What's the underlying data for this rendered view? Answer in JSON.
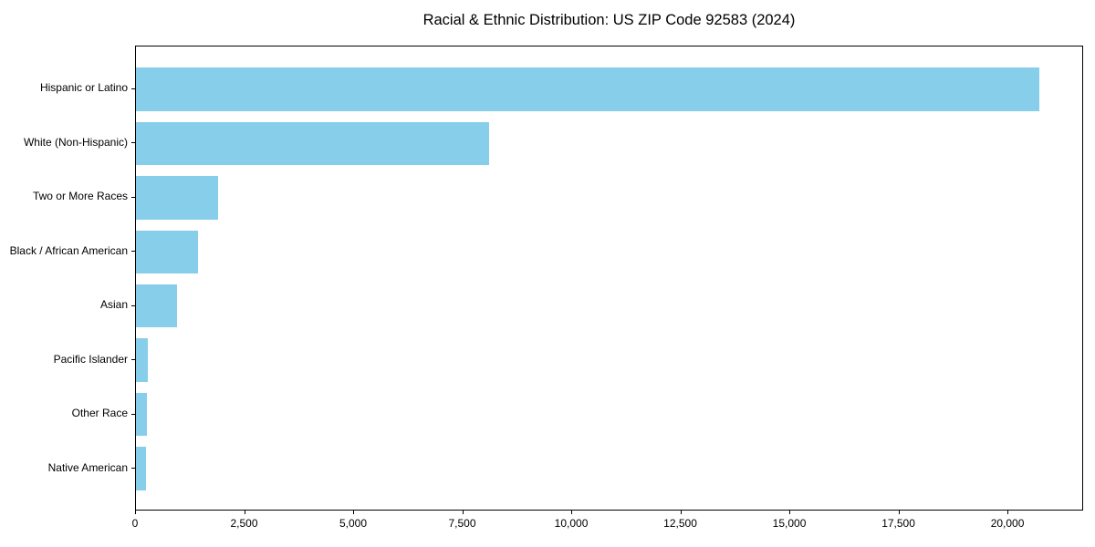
{
  "page": {
    "background_color": "#ffffff",
    "text_color": "#000000"
  },
  "chart_data": {
    "type": "bar",
    "orientation": "horizontal",
    "title": "Racial & Ethnic Distribution: US ZIP Code 92583 (2024)",
    "categories": [
      "Hispanic or Latino",
      "White (Non-Hispanic)",
      "Two or More Races",
      "Black / African American",
      "Asian",
      "Pacific Islander",
      "Other Race",
      "Native American"
    ],
    "values": [
      20700,
      8100,
      1880,
      1420,
      940,
      280,
      250,
      230
    ],
    "xlabel": "",
    "ylabel": "",
    "xlim": [
      0,
      21735
    ],
    "xticks": [
      0,
      2500,
      5000,
      7500,
      10000,
      12500,
      15000,
      17500,
      20000
    ],
    "xtick_labels": [
      "0",
      "2,500",
      "5,000",
      "7,500",
      "10,000",
      "12,500",
      "15,000",
      "17,500",
      "20,000"
    ],
    "bar_color": "#87CEEB",
    "axis_color": "#000000",
    "grid": false,
    "legend": null
  }
}
